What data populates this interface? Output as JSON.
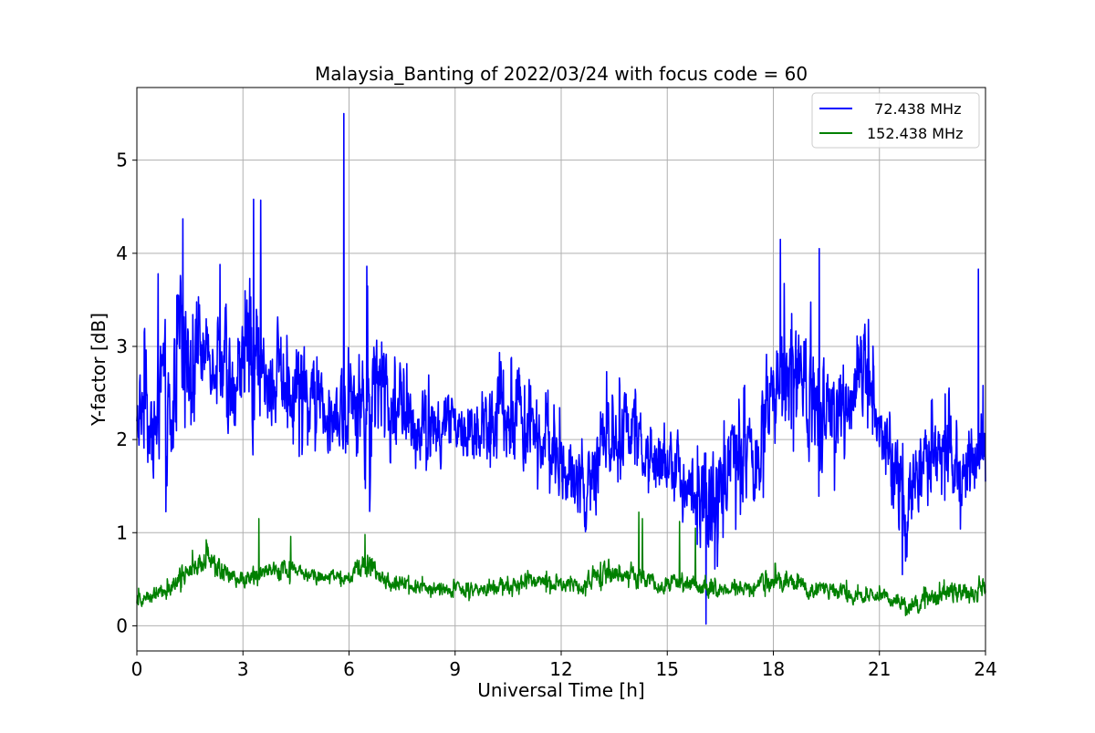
{
  "chart_data": {
    "type": "line",
    "title": "Malaysia_Banting of 2022/03/24 with focus code = 60",
    "xlabel": "Universal Time [h]",
    "ylabel": "Y-factor [dB]",
    "xlim": [
      0,
      24
    ],
    "ylim": [
      -0.27,
      5.78
    ],
    "xticks": [
      0,
      3,
      6,
      9,
      12,
      15,
      18,
      21,
      24
    ],
    "yticks": [
      0,
      1,
      2,
      3,
      4,
      5
    ],
    "grid": true,
    "legend_position": "top-right",
    "colors": {
      "series_1": "#0000ff",
      "series_2": "#008000",
      "grid": "#b0b0b0"
    },
    "series": [
      {
        "name": "  72.438 MHz",
        "color": "#0000ff",
        "x": [
          0,
          0.25,
          0.5,
          0.75,
          1.0,
          1.25,
          1.5,
          1.75,
          2.0,
          2.25,
          2.5,
          2.75,
          3.0,
          3.25,
          3.5,
          3.75,
          4.0,
          4.25,
          4.5,
          4.75,
          5.0,
          5.25,
          5.5,
          5.75,
          6.0,
          6.25,
          6.5,
          6.75,
          7.0,
          7.25,
          7.5,
          7.75,
          8.0,
          8.25,
          8.5,
          8.75,
          9.0,
          9.25,
          9.5,
          9.75,
          10.0,
          10.25,
          10.5,
          10.75,
          11.0,
          11.25,
          11.5,
          11.75,
          12.0,
          12.25,
          12.5,
          12.75,
          13.0,
          13.25,
          13.5,
          13.75,
          14.0,
          14.25,
          14.5,
          14.75,
          15.0,
          15.25,
          15.5,
          15.75,
          16.0,
          16.25,
          16.5,
          16.75,
          17.0,
          17.25,
          17.5,
          17.75,
          18.0,
          18.25,
          18.5,
          18.75,
          19.0,
          19.25,
          19.5,
          19.75,
          20.0,
          20.25,
          20.5,
          20.75,
          21.0,
          21.25,
          21.5,
          21.75,
          22.0,
          22.25,
          22.5,
          22.75,
          23.0,
          23.25,
          23.5,
          23.75,
          24.0
        ],
        "low": [
          1.6,
          1.4,
          1.4,
          1.3,
          1.0,
          2.0,
          2.0,
          2.2,
          2.3,
          2.3,
          2.0,
          1.3,
          2.0,
          1.4,
          1.9,
          1.8,
          2.0,
          1.9,
          1.8,
          1.7,
          1.8,
          1.7,
          1.8,
          1.7,
          1.7,
          1.8,
          0.9,
          1.7,
          1.8,
          1.6,
          1.7,
          1.5,
          1.6,
          1.6,
          1.4,
          1.6,
          1.8,
          1.6,
          1.5,
          1.6,
          1.5,
          1.6,
          1.4,
          1.5,
          1.5,
          1.5,
          1.4,
          1.4,
          1.1,
          0.9,
          1.0,
          0.7,
          0.9,
          1.2,
          1.5,
          1.5,
          1.3,
          1.5,
          1.2,
          1.2,
          1.3,
          0.9,
          1.0,
          0.9,
          0.2,
          0.5,
          0.7,
          0.9,
          1.0,
          1.0,
          1.0,
          1.3,
          1.8,
          1.8,
          1.7,
          1.9,
          1.5,
          1.3,
          1.6,
          1.4,
          1.7,
          1.7,
          1.9,
          1.8,
          1.6,
          1.2,
          0.6,
          0.5,
          0.9,
          1.1,
          1.2,
          1.3,
          1.2,
          0.8,
          1.0,
          1.2,
          1.4
        ],
        "high": [
          2.6,
          3.3,
          2.8,
          3.7,
          3.0,
          4.3,
          3.8,
          3.6,
          3.6,
          3.4,
          3.8,
          3.2,
          3.6,
          4.5,
          3.8,
          3.2,
          3.6,
          3.3,
          3.4,
          3.2,
          3.1,
          3.3,
          3.0,
          3.0,
          3.1,
          3.4,
          3.8,
          3.4,
          3.2,
          2.9,
          3.1,
          2.8,
          2.8,
          2.9,
          2.6,
          2.8,
          2.6,
          2.5,
          2.7,
          2.9,
          2.7,
          3.3,
          2.6,
          3.5,
          2.6,
          2.8,
          2.5,
          2.6,
          2.3,
          2.3,
          2.1,
          2.0,
          2.6,
          2.8,
          2.7,
          2.8,
          2.7,
          2.4,
          2.3,
          2.4,
          2.2,
          2.3,
          2.1,
          2.0,
          2.2,
          2.6,
          2.1,
          2.6,
          2.5,
          2.7,
          2.3,
          3.3,
          3.3,
          3.8,
          3.4,
          3.6,
          3.8,
          3.3,
          3.0,
          3.0,
          3.0,
          3.2,
          3.6,
          3.3,
          2.5,
          2.6,
          2.3,
          1.9,
          2.2,
          2.3,
          2.6,
          2.2,
          3.0,
          2.1,
          2.7,
          2.5,
          2.8
        ],
        "spikes": [
          {
            "x": 5.85,
            "y": 5.5
          },
          {
            "x": 3.3,
            "y": 4.58
          },
          {
            "x": 3.5,
            "y": 4.57
          },
          {
            "x": 1.3,
            "y": 4.37
          },
          {
            "x": 18.2,
            "y": 4.15
          },
          {
            "x": 19.3,
            "y": 4.05
          },
          {
            "x": 0.6,
            "y": 3.78
          },
          {
            "x": 2.35,
            "y": 3.88
          },
          {
            "x": 6.5,
            "y": 3.86
          },
          {
            "x": 23.8,
            "y": 3.83
          },
          {
            "x": 16.1,
            "y": 0.02
          }
        ]
      },
      {
        "name": "152.438 MHz",
        "color": "#008000",
        "x": [
          0,
          0.5,
          1.0,
          1.5,
          2.0,
          2.5,
          3.0,
          3.5,
          4.0,
          4.5,
          5.0,
          5.5,
          6.0,
          6.5,
          7.0,
          7.5,
          8.0,
          8.5,
          9.0,
          9.5,
          10.0,
          10.5,
          11.0,
          11.5,
          12.0,
          12.5,
          13.0,
          13.5,
          14.0,
          14.5,
          15.0,
          15.5,
          16.0,
          16.5,
          17.0,
          17.5,
          18.0,
          18.5,
          19.0,
          19.5,
          20.0,
          20.5,
          21.0,
          21.5,
          22.0,
          22.5,
          23.0,
          23.5,
          24.0
        ],
        "low": [
          0.18,
          0.2,
          0.3,
          0.4,
          0.55,
          0.4,
          0.35,
          0.4,
          0.45,
          0.45,
          0.4,
          0.45,
          0.4,
          0.45,
          0.35,
          0.35,
          0.3,
          0.3,
          0.28,
          0.25,
          0.3,
          0.3,
          0.35,
          0.35,
          0.3,
          0.3,
          0.35,
          0.4,
          0.4,
          0.35,
          0.3,
          0.35,
          0.25,
          0.25,
          0.3,
          0.3,
          0.3,
          0.3,
          0.25,
          0.25,
          0.2,
          0.2,
          0.2,
          0.15,
          0.05,
          0.15,
          0.2,
          0.2,
          0.25
        ],
        "high": [
          0.4,
          0.45,
          0.6,
          0.8,
          0.95,
          0.8,
          0.65,
          0.7,
          0.75,
          0.72,
          0.65,
          0.65,
          0.6,
          0.95,
          0.6,
          0.55,
          0.55,
          0.5,
          0.5,
          0.5,
          0.55,
          0.55,
          0.6,
          0.6,
          0.6,
          0.55,
          0.7,
          0.75,
          0.7,
          0.6,
          0.6,
          0.6,
          0.55,
          0.5,
          0.5,
          0.55,
          0.7,
          0.6,
          0.55,
          0.5,
          0.5,
          0.45,
          0.45,
          0.35,
          0.4,
          0.45,
          0.55,
          0.55,
          0.55
        ],
        "spikes": [
          {
            "x": 3.45,
            "y": 1.15
          },
          {
            "x": 14.2,
            "y": 1.22
          },
          {
            "x": 14.3,
            "y": 1.15
          },
          {
            "x": 15.35,
            "y": 1.12
          },
          {
            "x": 15.8,
            "y": 1.05
          },
          {
            "x": 4.35,
            "y": 0.96
          },
          {
            "x": 6.45,
            "y": 0.98
          }
        ]
      }
    ]
  }
}
